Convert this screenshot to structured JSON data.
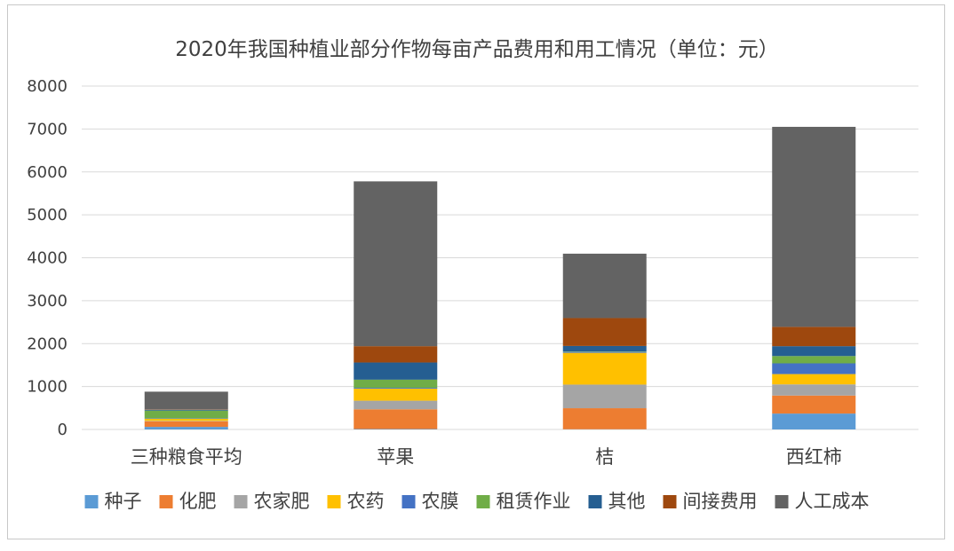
{
  "chart_data": {
    "type": "bar",
    "stacked": true,
    "title": "2020年我国种植业部分作物每亩产品费用和用工情况（单位：元）",
    "categories": [
      "三种粮食平均",
      "苹果",
      "桔",
      "西红柿"
    ],
    "ylim": [
      0,
      8000
    ],
    "yticks": [
      0,
      1000,
      2000,
      3000,
      4000,
      5000,
      6000,
      7000,
      8000
    ],
    "grid": true,
    "legend_position": "bottom",
    "series": [
      {
        "name": "种子",
        "color": "#5b9bd5",
        "values": [
          60,
          10,
          5,
          370
        ]
      },
      {
        "name": "化肥",
        "color": "#ed7d31",
        "values": [
          130,
          460,
          490,
          420
        ]
      },
      {
        "name": "农家肥",
        "color": "#a5a5a5",
        "values": [
          10,
          200,
          550,
          260
        ]
      },
      {
        "name": "农药",
        "color": "#ffc000",
        "values": [
          50,
          280,
          740,
          240
        ]
      },
      {
        "name": "农膜",
        "color": "#4472c4",
        "values": [
          10,
          20,
          20,
          250
        ]
      },
      {
        "name": "租赁作业",
        "color": "#70ad47",
        "values": [
          180,
          190,
          10,
          170
        ]
      },
      {
        "name": "其他",
        "color": "#255e91",
        "values": [
          20,
          400,
          130,
          230
        ]
      },
      {
        "name": "间接费用",
        "color": "#9e480e",
        "values": [
          10,
          380,
          650,
          450
        ]
      },
      {
        "name": "人工成本",
        "color": "#636363",
        "values": [
          410,
          3840,
          1500,
          4660
        ]
      }
    ]
  }
}
